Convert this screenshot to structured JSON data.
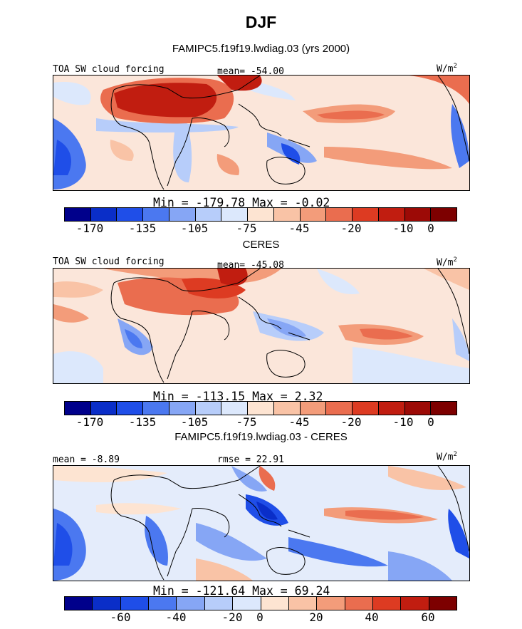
{
  "title": "DJF",
  "subtitle": "FAMIPC5.f19f19.lwdiag.03 (yrs 2000)",
  "panels": [
    {
      "header_left": "TOA SW cloud forcing",
      "header_mid": "mean= -54.00",
      "units": "W/m",
      "units_sup": "2",
      "stats": "Min = -179.78 Max =   -0.02",
      "ticks": [
        "-170",
        "-135",
        "-105",
        "-75",
        "-45",
        "-20",
        "-10",
        "0"
      ]
    },
    {
      "section_title": "CERES",
      "header_left": "TOA SW cloud forcing",
      "header_mid": "mean= -45.08",
      "units": "W/m",
      "units_sup": "2",
      "stats": "Min = -113.15 Max =   2.32",
      "ticks": [
        "-170",
        "-135",
        "-105",
        "-75",
        "-45",
        "-20",
        "-10",
        "0"
      ]
    },
    {
      "section_title": "FAMIPC5.f19f19.lwdiag.03 - CERES",
      "header_left": "mean =  -8.89",
      "header_mid": "rmse =  22.91",
      "units": "W/m",
      "units_sup": "2",
      "stats": "Min = -121.64 Max =  69.24",
      "ticks": [
        "-60",
        "-40",
        "-20",
        "0",
        "20",
        "40",
        "60"
      ]
    }
  ],
  "colors": {
    "abs_scale": [
      "#00008b",
      "#0a2ec8",
      "#1f4ee8",
      "#4b78f0",
      "#86a6f5",
      "#b7cdfa",
      "#dce8fc",
      "#fde4d2",
      "#f9c3a6",
      "#f39c7a",
      "#ea6d4f",
      "#dd3b22",
      "#c11d10",
      "#9c0a06",
      "#7d0000"
    ],
    "diff_scale": [
      "#00008b",
      "#0a2ec8",
      "#1f4ee8",
      "#4b78f0",
      "#86a6f5",
      "#b7cdfa",
      "#dce8fc",
      "#fde4d2",
      "#f9c3a6",
      "#f39c7a",
      "#ea6d4f",
      "#dd3b22",
      "#c11d10",
      "#7d0000"
    ]
  }
}
